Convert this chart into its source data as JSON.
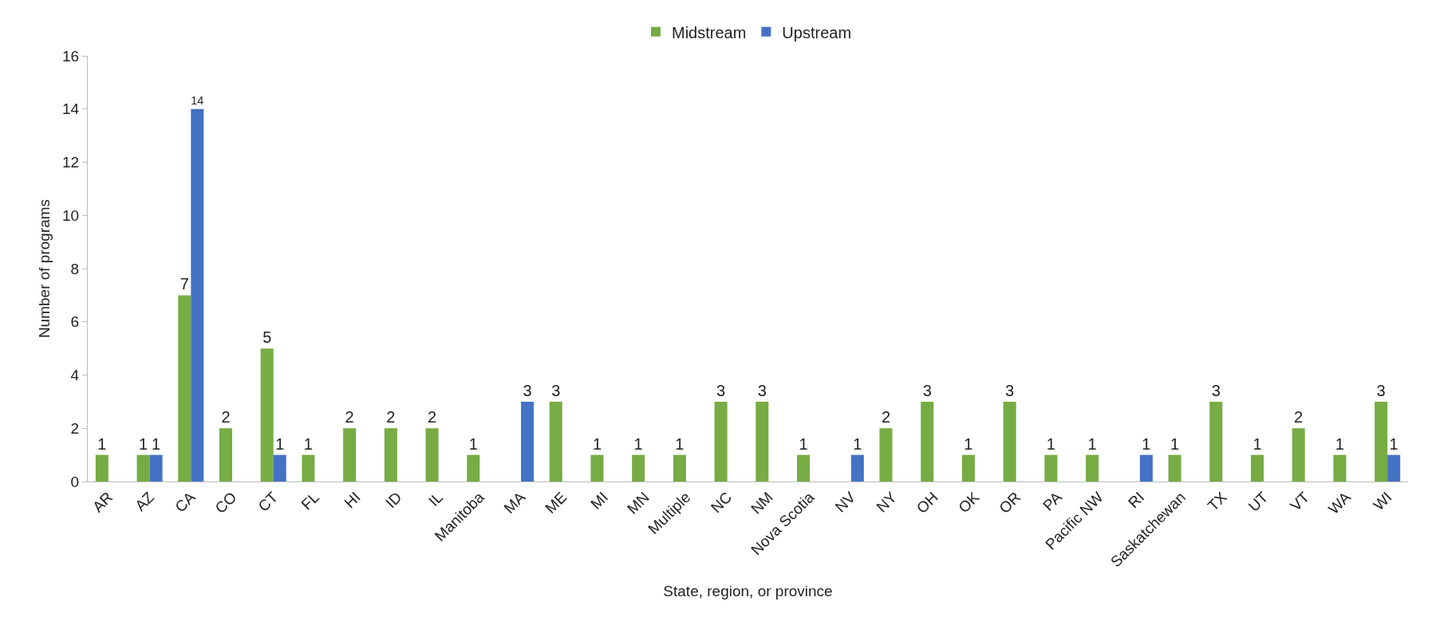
{
  "chart_data": {
    "type": "bar",
    "xlabel": "State, region, or province",
    "ylabel": "Number of programs",
    "categories": [
      "AR",
      "AZ",
      "CA",
      "CO",
      "CT",
      "FL",
      "HI",
      "ID",
      "IL",
      "Manitoba",
      "MA",
      "ME",
      "MI",
      "MN",
      "Multiple",
      "NC",
      "NM",
      "Nova Scotia",
      "NV",
      "NY",
      "OH",
      "OK",
      "OR",
      "PA",
      "Pacific NW",
      "RI",
      "Saskatchewan",
      "TX",
      "UT",
      "VT",
      "WA",
      "WI"
    ],
    "series": [
      {
        "name": "Midstream",
        "color": "#77ab43",
        "values": [
          1,
          1,
          7,
          2,
          5,
          1,
          2,
          2,
          2,
          1,
          null,
          3,
          1,
          1,
          1,
          3,
          3,
          1,
          null,
          2,
          3,
          1,
          3,
          1,
          1,
          null,
          1,
          3,
          1,
          2,
          1,
          3
        ]
      },
      {
        "name": "Upstream",
        "color": "#4472c4",
        "values": [
          null,
          1,
          14,
          null,
          1,
          null,
          null,
          null,
          null,
          null,
          3,
          null,
          null,
          null,
          null,
          null,
          null,
          null,
          1,
          null,
          null,
          null,
          null,
          null,
          null,
          1,
          null,
          null,
          null,
          null,
          null,
          1
        ]
      }
    ],
    "ylim": [
      0,
      16
    ],
    "yticks": [
      0,
      2,
      4,
      6,
      8,
      10,
      12,
      14,
      16
    ],
    "grid": false,
    "legend": "top",
    "data_labels": true
  }
}
